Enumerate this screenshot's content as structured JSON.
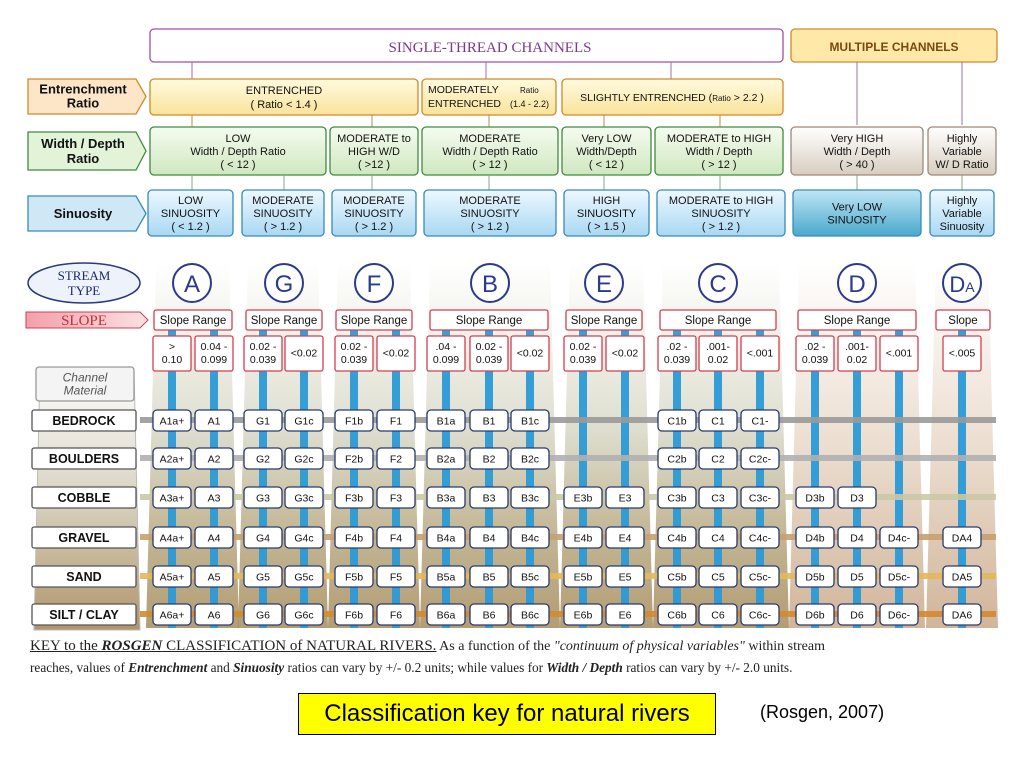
{
  "header": {
    "single_thread": "SINGLE-THREAD  CHANNELS",
    "multiple": "MULTIPLE CHANNELS"
  },
  "row_labels": {
    "entrenchment": [
      "Entrenchment",
      "Ratio"
    ],
    "width_depth": [
      "Width / Depth",
      "Ratio"
    ],
    "sinuosity": "Sinuosity",
    "stream_type": [
      "STREAM",
      "TYPE"
    ],
    "slope": "SLOPE",
    "channel_material": [
      "Channel",
      "Material"
    ]
  },
  "entrenchment": {
    "entrenched": [
      "ENTRENCHED",
      "( Ratio  < 1.4 )"
    ],
    "moderately_a": "MODERATELY",
    "moderately_ratio": "Ratio",
    "moderately_b": "ENTRENCHED",
    "moderately_range": "(1.4 - 2.2)",
    "slightly_a": "SLIGHTLY  ENTRENCHED  (",
    "slightly_ratio": "Ratio",
    "slightly_b": " > 2.2 )"
  },
  "width_depth": [
    [
      "LOW",
      "Width / Depth Ratio",
      "( < 12 )"
    ],
    [
      "MODERATE to",
      "HIGH   W/D",
      "( >12 )"
    ],
    [
      "MODERATE",
      "Width / Depth Ratio",
      "( > 12 )"
    ],
    [
      "Very LOW",
      "Width/Depth",
      "( < 12 )"
    ],
    [
      "MODERATE to HIGH",
      "Width / Depth",
      "( > 12 )"
    ],
    [
      "Very HIGH",
      "Width / Depth",
      "( > 40 )"
    ],
    [
      "Highly",
      "Variable",
      "W/ D Ratio"
    ]
  ],
  "sinuosity": [
    [
      "LOW",
      "SINUOSITY",
      "( < 1.2 )"
    ],
    [
      "MODERATE",
      "SINUOSITY",
      "( > 1.2 )"
    ],
    [
      "MODERATE",
      "SINUOSITY",
      "( > 1.2 )"
    ],
    [
      "MODERATE",
      "SINUOSITY",
      "( > 1.2 )"
    ],
    [
      "HIGH",
      "SINUOSITY",
      "( > 1.5 )"
    ],
    [
      "MODERATE to HIGH",
      "SINUOSITY",
      "( > 1.2 )"
    ],
    [
      "Very LOW",
      "SINUOSITY"
    ],
    [
      "Highly",
      "Variable",
      "Sinuosity"
    ]
  ],
  "stream_types": [
    "A",
    "G",
    "F",
    "B",
    "E",
    "C",
    "D",
    "DA"
  ],
  "slope_labels": [
    "Slope Range",
    "Slope Range",
    "Slope Range",
    "Slope  Range",
    "Slope Range",
    "Slope  Range",
    "Slope  Range",
    "Slope"
  ],
  "slopes": [
    [
      [
        "> ",
        "0.10"
      ],
      [
        "0.04 -",
        "0.099"
      ]
    ],
    [
      [
        "0.02 -",
        "0.039"
      ],
      [
        "<0.02"
      ]
    ],
    [
      [
        "0.02 -",
        "0.039"
      ],
      [
        "<0.02"
      ]
    ],
    [
      [
        ".04 -",
        "0.099"
      ],
      [
        "0.02 -",
        "0.039"
      ],
      [
        "<0.02"
      ]
    ],
    [
      [
        "0.02 -",
        "0.039"
      ],
      [
        "<0.02"
      ]
    ],
    [
      [
        ".02 -",
        "0.039"
      ],
      [
        ".001-",
        "0.02"
      ],
      [
        "<.001"
      ]
    ],
    [
      [
        ".02 -",
        "0.039"
      ],
      [
        ".001-",
        "0.02"
      ],
      [
        "<.001"
      ]
    ],
    [
      [
        "<.005"
      ]
    ]
  ],
  "materials": [
    "BEDROCK",
    "BOULDERS",
    "COBBLE",
    "GRAVEL",
    "SAND",
    "SILT / CLAY"
  ],
  "material_colors": [
    "#9a9a9a",
    "#b0b0b0",
    "#c9c9a8",
    "#c8a070",
    "#e2b85a",
    "#d48a30"
  ],
  "cells": [
    [
      "A1a+",
      "A1",
      "G1",
      "G1c",
      "F1b",
      "F1",
      "B1a",
      "B1",
      "B1c",
      "",
      "",
      "C1b",
      "C1",
      "C1-",
      "",
      "",
      "",
      ""
    ],
    [
      "A2a+",
      "A2",
      "G2",
      "G2c",
      "F2b",
      "F2",
      "B2a",
      "B2",
      "B2c",
      "",
      "",
      "C2b",
      "C2",
      "C2c-",
      "",
      "",
      "",
      ""
    ],
    [
      "A3a+",
      "A3",
      "G3",
      "G3c",
      "F3b",
      "F3",
      "B3a",
      "B3",
      "B3c",
      "E3b",
      "E3",
      "C3b",
      "C3",
      "C3c-",
      "D3b",
      "D3",
      "",
      ""
    ],
    [
      "A4a+",
      "A4",
      "G4",
      "G4c",
      "F4b",
      "F4",
      "B4a",
      "B4",
      "B4c",
      "E4b",
      "E4",
      "C4b",
      "C4",
      "C4c-",
      "D4b",
      "D4",
      "D4c-",
      "DA4"
    ],
    [
      "A5a+",
      "A5",
      "G5",
      "G5c",
      "F5b",
      "F5",
      "B5a",
      "B5",
      "B5c",
      "E5b",
      "E5",
      "C5b",
      "C5",
      "C5c-",
      "D5b",
      "D5",
      "D5c-",
      "DA5"
    ],
    [
      "A6a+",
      "A6",
      "G6",
      "G6c",
      "F6b",
      "F6",
      "B6a",
      "B6",
      "B6c",
      "E6b",
      "E6",
      "C6b",
      "C6",
      "C6c-",
      "D6b",
      "D6",
      "D6c-",
      "DA6"
    ]
  ],
  "key": {
    "title_a": "KEY to the ",
    "title_rosgen": "ROSGEN",
    "title_b": " CLASSIFICATION of NATURAL RIVERS.",
    "line1_rest": "   As a function of the ",
    "line1_quote": "\"continuum of physical variables\"",
    "line1_end": "  within stream",
    "line2_a": "reaches, values of  ",
    "line2_entrench": "Entrenchment",
    "line2_and": " and ",
    "line2_sinuosity": "Sinuosity",
    "line2_b": "  ratios can vary by +/- 0.2 units; while values for  ",
    "line2_wd": "Width / Depth",
    "line2_c": "  ratios can vary by +/- 2.0 units."
  },
  "caption": "Classification key for natural rivers",
  "citation": "(Rosgen, 2007)",
  "colors": {
    "purple": "#a04fa8",
    "orange_border": "#d08a2a",
    "green_border": "#3c8d3c",
    "blue_border": "#3a8ab8",
    "stream_circle": "#2a3a8c",
    "slope_border": "#d04050",
    "cell_border": "#2a3a6c",
    "bar": "#2b9ad6"
  }
}
